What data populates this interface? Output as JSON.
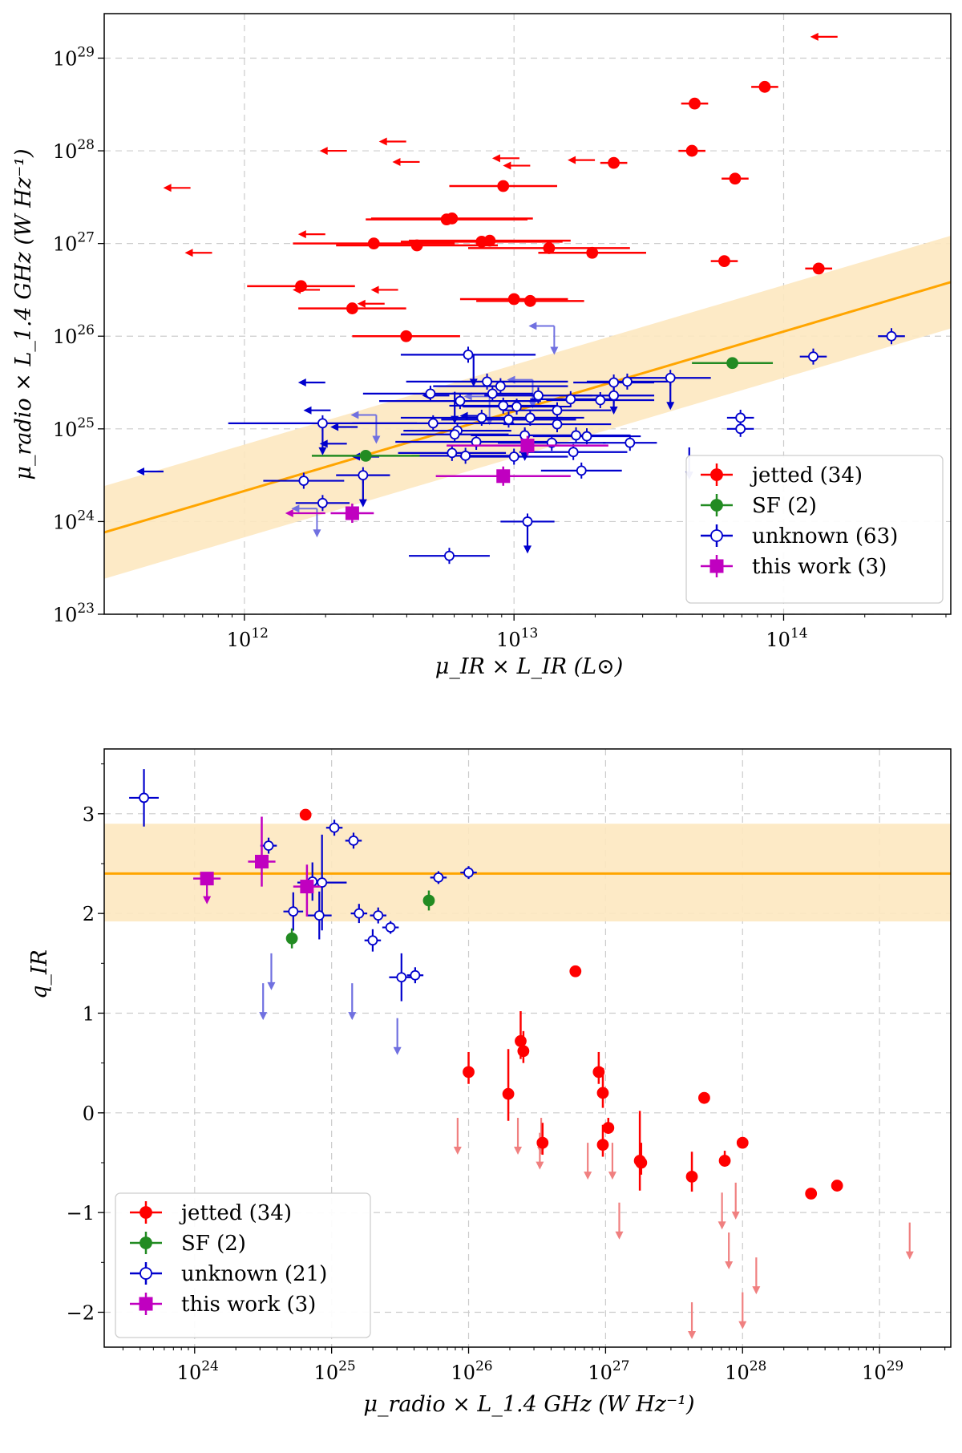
{
  "chart_data": [
    {
      "type": "scatter",
      "xlabel": "μ_IR × L_IR (L⊙)",
      "ylabel": "μ_radio × L_1.4 GHz (W Hz⁻¹)",
      "xscale": "log",
      "yscale": "log",
      "xlim_log10": [
        11.48,
        14.62
      ],
      "ylim_log10": [
        23,
        29.48
      ],
      "xtick_labels": [
        {
          "base": "10",
          "exp": "12"
        },
        {
          "base": "10",
          "exp": "13"
        },
        {
          "base": "10",
          "exp": "14"
        }
      ],
      "xtick_values_log10": [
        12,
        13,
        14
      ],
      "ytick_labels": [
        {
          "base": "10",
          "exp": "23"
        },
        {
          "base": "10",
          "exp": "24"
        },
        {
          "base": "10",
          "exp": "25"
        },
        {
          "base": "10",
          "exp": "26"
        },
        {
          "base": "10",
          "exp": "27"
        },
        {
          "base": "10",
          "exp": "28"
        },
        {
          "base": "10",
          "exp": "29"
        }
      ],
      "ytick_values_log10": [
        23,
        24,
        25,
        26,
        27,
        28,
        29
      ],
      "grid": true,
      "legend_position": "lower-right",
      "legend": [
        {
          "label": "jetted (34)",
          "color": "#ff0000",
          "marker": "filled-circle"
        },
        {
          "label": "SF (2)",
          "color": "#228b22",
          "marker": "filled-circle"
        },
        {
          "label": "unknown (63)",
          "color": "#0000cd",
          "marker": "open-circle"
        },
        {
          "label": "this work (3)",
          "color": "#c000c0",
          "marker": "square"
        }
      ],
      "relation": {
        "slope": 0.86,
        "intercept_log10y_at_x12": 24.33,
        "band_dex": 0.5,
        "line_color": "#ffa500",
        "band_color": "#fde8c0"
      },
      "series": [
        {
          "name": "jetted",
          "color": "#ff0000",
          "points": [
            [
              12.21,
              26.54,
              0.2
            ],
            [
              12.4,
              26.3,
              0.2
            ],
            [
              12.6,
              26.0,
              0.2
            ],
            [
              13.0,
              26.4,
              0.2
            ],
            [
              13.06,
              26.38,
              0.2
            ],
            [
              12.64,
              26.98,
              0.3
            ],
            [
              12.75,
              27.26,
              0.3
            ],
            [
              12.77,
              27.27,
              0.3
            ],
            [
              12.88,
              27.02,
              0.3
            ],
            [
              12.91,
              27.03,
              0.3
            ],
            [
              13.13,
              26.95,
              0.3
            ],
            [
              13.29,
              26.9,
              0.2
            ],
            [
              13.37,
              27.87,
              0.05
            ],
            [
              13.66,
              28.0,
              0.05
            ],
            [
              13.67,
              28.51,
              0.05
            ],
            [
              13.82,
              27.7,
              0.05
            ],
            [
              13.93,
              28.69,
              0.05
            ],
            [
              13.78,
              26.81,
              0.05
            ],
            [
              14.13,
              26.73,
              0.05
            ],
            [
              12.96,
              27.62,
              0.2
            ],
            [
              12.48,
              27.0,
              0.3
            ]
          ],
          "upper_limits_x": [
            [
              11.8,
              27.6
            ],
            [
              11.88,
              26.9
            ],
            [
              12.3,
              27.1
            ],
            [
              12.38,
              28.0
            ],
            [
              12.52,
              26.35
            ],
            [
              12.57,
              26.5
            ],
            [
              12.6,
              28.1
            ],
            [
              12.65,
              27.88
            ],
            [
              13.02,
              27.92
            ],
            [
              13.06,
              27.84
            ],
            [
              13.3,
              27.9
            ],
            [
              14.2,
              29.23
            ],
            [
              12.28,
              26.5
            ]
          ]
        },
        {
          "name": "SF",
          "color": "#228b22",
          "points": [
            [
              12.45,
              24.71,
              0.2
            ],
            [
              13.81,
              25.71,
              0.15
            ]
          ]
        },
        {
          "name": "unknown",
          "color": "#0000cd",
          "points": [
            [
              12.29,
              25.06,
              0.35
            ],
            [
              12.22,
              24.44,
              0.15
            ],
            [
              12.29,
              24.2,
              0.1
            ],
            [
              12.44,
              24.5,
              0.1
            ],
            [
              12.7,
              25.06,
              0.3
            ],
            [
              12.79,
              24.98,
              0.2
            ],
            [
              12.82,
              24.71,
              0.2
            ],
            [
              12.78,
              24.94,
              0.2
            ],
            [
              12.77,
              24.74,
              0.2
            ],
            [
              12.88,
              25.12,
              0.3
            ],
            [
              12.86,
              24.86,
              0.3
            ],
            [
              12.9,
              25.51,
              0.3
            ],
            [
              12.92,
              25.38,
              0.15
            ],
            [
              12.96,
              25.25,
              0.2
            ],
            [
              12.98,
              25.1,
              0.25
            ],
            [
              13.01,
              25.24,
              0.2
            ],
            [
              13.06,
              25.12,
              0.2
            ],
            [
              13.09,
              25.36,
              0.2
            ],
            [
              13.0,
              24.7,
              0.2
            ],
            [
              13.04,
              24.93,
              0.2
            ],
            [
              13.16,
              25.2,
              0.2
            ],
            [
              13.16,
              25.05,
              0.2
            ],
            [
              13.14,
              24.85,
              0.2
            ],
            [
              13.21,
              25.32,
              0.15
            ],
            [
              13.23,
              24.93,
              0.2
            ],
            [
              13.22,
              24.75,
              0.2
            ],
            [
              13.27,
              24.92,
              0.2
            ],
            [
              13.25,
              24.55,
              0.15
            ],
            [
              13.32,
              25.31,
              0.2
            ],
            [
              13.37,
              25.36,
              0.15
            ],
            [
              13.37,
              25.5,
              0.15
            ],
            [
              13.42,
              25.51,
              0.15
            ],
            [
              13.58,
              25.55,
              0.15
            ],
            [
              13.43,
              24.85,
              0.1
            ],
            [
              13.05,
              24.0,
              0.1
            ],
            [
              12.76,
              23.63,
              0.15
            ],
            [
              13.84,
              25.0,
              0.05
            ],
            [
              13.84,
              25.12,
              0.05
            ],
            [
              14.11,
              25.78,
              0.05
            ],
            [
              14.4,
              26.0,
              0.05
            ],
            [
              12.83,
              25.8,
              0.25
            ],
            [
              12.95,
              25.46,
              0.25
            ],
            [
              12.69,
              25.38,
              0.25
            ],
            [
              12.8,
              25.3,
              0.3
            ]
          ],
          "upper_limits_y": [
            [
              12.29,
              25.06
            ],
            [
              12.44,
              24.5
            ],
            [
              12.78,
              25.4
            ],
            [
              12.85,
              25.8
            ],
            [
              13.04,
              25.0
            ],
            [
              13.37,
              25.5
            ],
            [
              13.58,
              25.55
            ],
            [
              13.05,
              24.0
            ],
            [
              13.65,
              24.8
            ]
          ],
          "upper_limits_x": [
            [
              11.7,
              24.54
            ],
            [
              12.32,
              25.2
            ],
            [
              12.38,
              24.84
            ],
            [
              12.3,
              25.5
            ],
            [
              12.42,
              25.02
            ],
            [
              12.5,
              24.7
            ],
            [
              12.76,
              25.36
            ],
            [
              12.9,
              25.14
            ]
          ],
          "faint_arrows": [
            [
              13.06,
              26.11
            ],
            [
              12.4,
              25.15
            ],
            [
              12.18,
              24.14
            ],
            [
              12.98,
              25.53
            ],
            [
              12.82,
              25.35
            ]
          ]
        },
        {
          "name": "this work",
          "color": "#c000c0",
          "points": [
            [
              12.4,
              24.09,
              0.08
            ],
            [
              12.96,
              24.49,
              0.25
            ],
            [
              13.05,
              24.82,
              0.3
            ]
          ],
          "upper_limits_x": [
            [
              12.3,
              24.09
            ]
          ]
        }
      ]
    },
    {
      "type": "scatter",
      "xlabel": "μ_radio × L_1.4 GHz (W Hz⁻¹)",
      "ylabel": "q_IR",
      "xscale": "log",
      "xlim_log10": [
        23.34,
        29.52
      ],
      "ylim": [
        -2.35,
        3.65
      ],
      "xtick_labels": [
        {
          "base": "10",
          "exp": "24"
        },
        {
          "base": "10",
          "exp": "25"
        },
        {
          "base": "10",
          "exp": "26"
        },
        {
          "base": "10",
          "exp": "27"
        },
        {
          "base": "10",
          "exp": "28"
        },
        {
          "base": "10",
          "exp": "29"
        }
      ],
      "xtick_values_log10": [
        24,
        25,
        26,
        27,
        28,
        29
      ],
      "ytick_labels": [
        "−2",
        "−1",
        "0",
        "1",
        "2",
        "3"
      ],
      "ytick_values": [
        -2,
        -1,
        0,
        1,
        2,
        3
      ],
      "grid": true,
      "legend_position": "lower-left",
      "legend": [
        {
          "label": "jetted (34)",
          "color": "#ff0000",
          "marker": "filled-circle"
        },
        {
          "label": "SF (2)",
          "color": "#228b22",
          "marker": "filled-circle"
        },
        {
          "label": "unknown (21)",
          "color": "#0000cd",
          "marker": "open-circle"
        },
        {
          "label": "this work (3)",
          "color": "#c000c0",
          "marker": "square"
        }
      ],
      "relation": {
        "q_mean": 2.4,
        "band": [
          1.92,
          2.9
        ],
        "line_color": "#ffa500",
        "band_color": "#fde8c0"
      },
      "series": [
        {
          "name": "jetted",
          "color": "#ff0000",
          "points": [
            [
              24.81,
              2.99,
              0.0
            ],
            [
              26.0,
              0.41,
              0.2
            ],
            [
              26.29,
              0.19,
              0.45
            ],
            [
              26.38,
              0.72,
              0.3
            ],
            [
              26.4,
              0.62,
              0.2
            ],
            [
              26.54,
              -0.3,
              0.2
            ],
            [
              26.78,
              1.42,
              0.0
            ],
            [
              26.95,
              0.41,
              0.2
            ],
            [
              26.98,
              0.2,
              0.25
            ],
            [
              26.98,
              -0.32,
              0.2
            ],
            [
              27.02,
              -0.15,
              0.1
            ],
            [
              27.25,
              -0.48,
              0.5
            ],
            [
              27.26,
              -0.5,
              0.2
            ],
            [
              27.63,
              -0.64,
              0.25
            ],
            [
              27.72,
              0.15,
              0.0
            ],
            [
              27.87,
              -0.48,
              0.1
            ],
            [
              28.0,
              -0.3,
              0.0
            ],
            [
              28.5,
              -0.81,
              0.0
            ],
            [
              28.69,
              -0.73,
              0.0
            ]
          ],
          "upper_limits_y": [
            [
              25.92,
              -0.05
            ],
            [
              26.36,
              -0.05
            ],
            [
              26.52,
              -0.2
            ],
            [
              26.53,
              -0.05
            ],
            [
              27.05,
              -0.3
            ],
            [
              27.1,
              -0.9
            ],
            [
              27.63,
              -1.9
            ],
            [
              27.85,
              -0.8
            ],
            [
              27.9,
              -1.2
            ],
            [
              27.95,
              -0.7
            ],
            [
              28.0,
              -1.8
            ],
            [
              28.1,
              -1.45
            ],
            [
              29.22,
              -1.1
            ],
            [
              26.87,
              -0.3
            ]
          ]
        },
        {
          "name": "SF",
          "color": "#228b22",
          "points": [
            [
              24.71,
              1.75,
              0.1
            ],
            [
              25.71,
              2.13,
              0.1
            ]
          ]
        },
        {
          "name": "unknown",
          "color": "#0000cd",
          "points": [
            [
              23.63,
              3.16,
              0.18
            ],
            [
              24.54,
              2.68,
              0.05
            ],
            [
              24.72,
              2.02,
              0.12
            ],
            [
              24.86,
              2.32,
              0.12
            ],
            [
              24.91,
              1.98,
              0.15
            ],
            [
              24.93,
              2.31,
              0.3
            ],
            [
              25.02,
              2.86,
              0.05
            ],
            [
              25.16,
              2.73,
              0.05
            ],
            [
              25.2,
              2.0,
              0.06
            ],
            [
              25.3,
              1.73,
              0.07
            ],
            [
              25.34,
              1.98,
              0.05
            ],
            [
              25.43,
              1.86,
              0.04
            ],
            [
              25.51,
              1.36,
              0.15
            ],
            [
              25.61,
              1.38,
              0.05
            ],
            [
              25.78,
              2.36,
              0.04
            ],
            [
              26.0,
              2.41,
              0.04
            ]
          ],
          "faint_arrows": [
            [
              24.56,
              1.6
            ],
            [
              24.5,
              1.3
            ],
            [
              25.15,
              1.3
            ],
            [
              25.48,
              0.95
            ]
          ]
        },
        {
          "name": "this work",
          "color": "#c000c0",
          "points": [
            [
              24.09,
              2.35,
              0.06
            ],
            [
              24.49,
              2.52,
              0.08
            ],
            [
              24.82,
              2.27,
              0.1
            ]
          ]
        }
      ]
    }
  ]
}
